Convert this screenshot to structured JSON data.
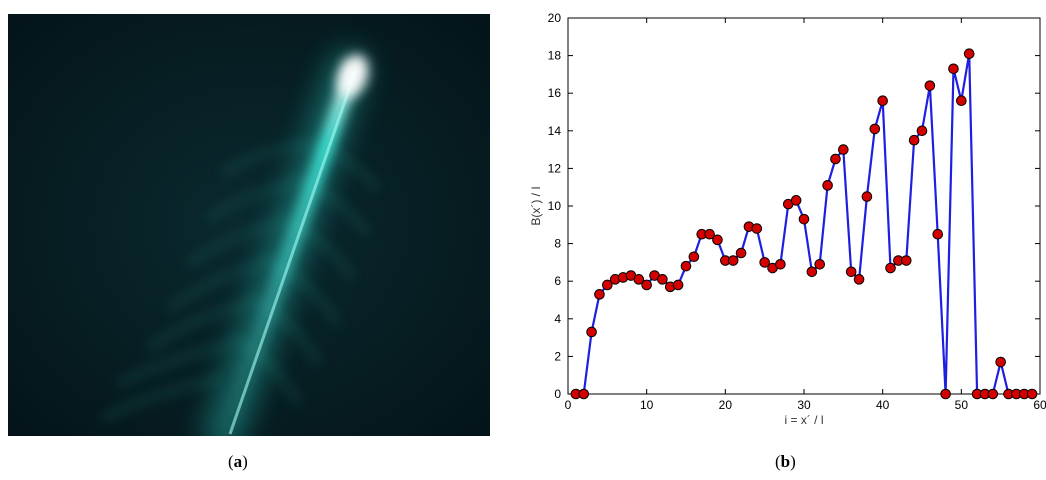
{
  "panels": {
    "a": {
      "label_open": "(",
      "label_letter": "a",
      "label_close": ")"
    },
    "b": {
      "label_open": "(",
      "label_letter": "b",
      "label_close": ")"
    }
  },
  "chart_data": {
    "type": "line",
    "title": "",
    "xlabel": "i = x´ / l",
    "ylabel": "B(x´) / I",
    "xlim": [
      0,
      60
    ],
    "ylim": [
      0,
      20
    ],
    "xticks": [
      0,
      10,
      20,
      30,
      40,
      50,
      60
    ],
    "yticks": [
      0,
      2,
      4,
      6,
      8,
      10,
      12,
      14,
      16,
      18,
      20
    ],
    "grid": false,
    "legend": "none",
    "line_color": "#1f1fe0",
    "marker_color": "#d40000",
    "marker_edge": "#000000",
    "x": [
      1,
      2,
      3,
      4,
      5,
      6,
      7,
      8,
      9,
      10,
      11,
      12,
      13,
      14,
      15,
      16,
      17,
      18,
      19,
      20,
      21,
      22,
      23,
      24,
      25,
      26,
      27,
      28,
      29,
      30,
      31,
      32,
      33,
      34,
      35,
      36,
      37,
      38,
      39,
      40,
      41,
      42,
      43,
      44,
      45,
      46,
      47,
      48,
      49,
      50,
      51,
      52,
      53,
      54,
      55,
      56,
      57,
      58,
      59
    ],
    "y": [
      0,
      0,
      3.3,
      5.3,
      5.8,
      6.1,
      6.2,
      6.3,
      6.1,
      5.8,
      6.3,
      6.1,
      5.7,
      5.8,
      6.8,
      7.3,
      8.5,
      8.5,
      8.2,
      7.1,
      7.1,
      7.5,
      8.9,
      8.8,
      7.0,
      6.7,
      6.9,
      10.1,
      10.3,
      9.3,
      6.5,
      6.9,
      11.1,
      12.5,
      13.0,
      6.5,
      6.1,
      10.5,
      14.1,
      15.6,
      6.7,
      7.1,
      7.1,
      13.5,
      14.0,
      16.4,
      8.5,
      0,
      17.3,
      15.6,
      18.1,
      0,
      0,
      0,
      1.7,
      0,
      0,
      0,
      0
    ]
  }
}
